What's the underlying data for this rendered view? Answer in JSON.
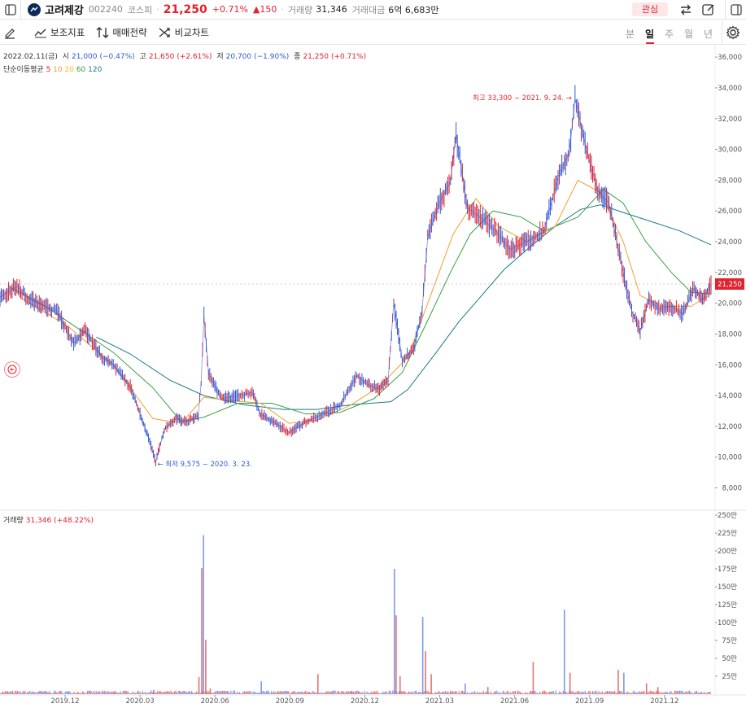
{
  "header": {
    "stock_name": "고려제강",
    "code": "002240",
    "market": "코스피",
    "price": "21,250",
    "change_pct": "+0.71%",
    "change_abs": "▲150",
    "volume_label": "거래량",
    "volume": "31,346",
    "amount_label": "거래대금",
    "amount": "6억 6,683만",
    "favorite_label": "관심"
  },
  "toolbar": {
    "indicator_label": "보조지표",
    "strategy_label": "매매전략",
    "compare_label": "비교차트",
    "periods": [
      "분",
      "일",
      "주",
      "월",
      "년"
    ],
    "active_period": "일"
  },
  "ohlc": {
    "date": "2022.02.11(금)",
    "open_label": "시",
    "open": "21,000",
    "open_pct": "(−0.47%)",
    "high_label": "고",
    "high": "21,650",
    "high_pct": "(+2.61%)",
    "low_label": "저",
    "low": "20,700",
    "low_pct": "(−1.90%)",
    "close_label": "종",
    "close": "21,250",
    "close_pct": "(+0.71%)"
  },
  "ma_legend": {
    "label": "단순이동평균",
    "p5": "5",
    "p10": "10",
    "p20": "20",
    "p60": "60",
    "p120": "120"
  },
  "volume_legend": {
    "label": "거래량",
    "value": "31,346",
    "pct": "(+48.22%)"
  },
  "colors": {
    "up": "#e0232e",
    "down": "#2e5bd8",
    "ma5": "#e0232e",
    "ma10": "#f0a030",
    "ma20": "#f0c020",
    "ma60": "#3aa040",
    "ma120": "#1a7a8a"
  },
  "chart_data": {
    "type": "line",
    "price_axis": {
      "ticks": [
        8000,
        10000,
        12000,
        14000,
        16000,
        18000,
        20000,
        22000,
        24000,
        26000,
        28000,
        30000,
        32000,
        34000,
        36000
      ],
      "tick_labels": [
        "8,000",
        "10,000",
        "12,000",
        "14,000",
        "16,000",
        "18,000",
        "20,000",
        "22,000",
        "24,000",
        "26,000",
        "28,000",
        "30,000",
        "32,000",
        "34,000",
        "36,000"
      ],
      "ylim": [
        6600,
        36800
      ]
    },
    "volume_axis": {
      "ticks": [
        25,
        50,
        75,
        100,
        125,
        150,
        175,
        200,
        225,
        250
      ],
      "tick_labels": [
        "25만",
        "50만",
        "75만",
        "100만",
        "125만",
        "150만",
        "175만",
        "200만",
        "225만",
        "250만"
      ],
      "ylim": [
        0,
        250
      ]
    },
    "x_labels": [
      "2019.12",
      "2020.03",
      "2020.06",
      "2020.09",
      "2020.12",
      "2021.03",
      "2021.06",
      "2021.09",
      "2021.12"
    ],
    "current_price_label": "21,250",
    "current_price": 21250,
    "annotations": {
      "high": "최고 33,300 − 2021. 9. 24.",
      "low": "← 최저 9,575 − 2020. 3. 23."
    },
    "price_series": [
      [
        0,
        20400
      ],
      [
        0.3,
        21100
      ],
      [
        0.5,
        20300
      ],
      [
        0.8,
        19800
      ],
      [
        1.0,
        19500
      ],
      [
        1.3,
        17400
      ],
      [
        1.5,
        18200
      ],
      [
        1.8,
        16500
      ],
      [
        2.0,
        16000
      ],
      [
        2.3,
        14600
      ],
      [
        2.6,
        11500
      ],
      [
        2.75,
        9700
      ],
      [
        2.9,
        11800
      ],
      [
        3.1,
        12500
      ],
      [
        3.3,
        12300
      ],
      [
        3.5,
        12700
      ],
      [
        3.55,
        14800
      ],
      [
        3.6,
        19200
      ],
      [
        3.68,
        15500
      ],
      [
        3.9,
        13800
      ],
      [
        4.2,
        14000
      ],
      [
        4.45,
        14200
      ],
      [
        4.6,
        12800
      ],
      [
        4.9,
        12100
      ],
      [
        5.1,
        11600
      ],
      [
        5.4,
        12300
      ],
      [
        5.7,
        12800
      ],
      [
        6.0,
        13400
      ],
      [
        6.3,
        15300
      ],
      [
        6.5,
        14700
      ],
      [
        6.7,
        14400
      ],
      [
        6.85,
        15000
      ],
      [
        6.95,
        20000
      ],
      [
        7.1,
        16300
      ],
      [
        7.3,
        17000
      ],
      [
        7.45,
        19500
      ],
      [
        7.55,
        24300
      ],
      [
        7.75,
        26500
      ],
      [
        7.95,
        27900
      ],
      [
        8.05,
        31000
      ],
      [
        8.25,
        26200
      ],
      [
        8.5,
        25500
      ],
      [
        8.75,
        24700
      ],
      [
        9.0,
        23500
      ],
      [
        9.3,
        24000
      ],
      [
        9.6,
        24700
      ],
      [
        9.85,
        28200
      ],
      [
        10.05,
        29800
      ],
      [
        10.15,
        33300
      ],
      [
        10.35,
        30000
      ],
      [
        10.55,
        27300
      ],
      [
        10.75,
        26500
      ],
      [
        11.0,
        22000
      ],
      [
        11.15,
        19500
      ],
      [
        11.3,
        18200
      ],
      [
        11.45,
        20200
      ],
      [
        11.65,
        19600
      ],
      [
        11.85,
        19800
      ],
      [
        12.05,
        19300
      ],
      [
        12.25,
        21000
      ],
      [
        12.4,
        20200
      ],
      [
        12.55,
        21250
      ]
    ],
    "volume_series": [
      [
        0.8,
        2
      ],
      [
        1.2,
        3
      ],
      [
        2.0,
        2
      ],
      [
        2.7,
        6
      ],
      [
        3.4,
        1
      ],
      [
        3.5,
        24
      ],
      [
        3.55,
        176
      ],
      [
        3.58,
        222
      ],
      [
        3.62,
        76
      ],
      [
        3.7,
        8
      ],
      [
        4.6,
        18
      ],
      [
        5.6,
        28
      ],
      [
        6.2,
        4
      ],
      [
        6.95,
        175
      ],
      [
        6.98,
        110
      ],
      [
        7.05,
        25
      ],
      [
        7.45,
        108
      ],
      [
        7.5,
        60
      ],
      [
        7.6,
        28
      ],
      [
        8.2,
        15
      ],
      [
        8.6,
        10
      ],
      [
        9.4,
        45
      ],
      [
        9.95,
        118
      ],
      [
        10.05,
        30
      ],
      [
        10.9,
        34
      ],
      [
        11.0,
        30
      ],
      [
        11.4,
        15
      ],
      [
        11.6,
        10
      ]
    ],
    "ma_series": {
      "ma20": [
        [
          0.4,
          20300
        ],
        [
          1.2,
          18500
        ],
        [
          2.0,
          16000
        ],
        [
          2.7,
          12500
        ],
        [
          3.2,
          12200
        ],
        [
          3.6,
          13900
        ],
        [
          4.0,
          13700
        ],
        [
          4.6,
          13500
        ],
        [
          5.1,
          12200
        ],
        [
          5.6,
          12400
        ],
        [
          6.2,
          13400
        ],
        [
          6.7,
          14600
        ],
        [
          7.2,
          16500
        ],
        [
          7.55,
          20000
        ],
        [
          8.0,
          24500
        ],
        [
          8.4,
          26800
        ],
        [
          8.8,
          25000
        ],
        [
          9.3,
          24000
        ],
        [
          9.8,
          25000
        ],
        [
          10.2,
          28000
        ],
        [
          10.6,
          27200
        ],
        [
          11.0,
          24000
        ],
        [
          11.3,
          20500
        ],
        [
          11.7,
          19800
        ],
        [
          12.2,
          19800
        ],
        [
          12.55,
          20600
        ]
      ],
      "ma60": [
        [
          0.2,
          21000
        ],
        [
          0.8,
          19800
        ],
        [
          1.2,
          18800
        ],
        [
          2.0,
          16800
        ],
        [
          2.7,
          14500
        ],
        [
          3.2,
          12300
        ],
        [
          3.6,
          12600
        ],
        [
          4.2,
          13500
        ],
        [
          4.8,
          13500
        ],
        [
          5.4,
          12800
        ],
        [
          6.0,
          12900
        ],
        [
          6.6,
          13800
        ],
        [
          7.1,
          15500
        ],
        [
          7.5,
          18500
        ],
        [
          7.95,
          22000
        ],
        [
          8.3,
          24500
        ],
        [
          8.7,
          26000
        ],
        [
          9.2,
          25600
        ],
        [
          9.6,
          24700
        ],
        [
          10.2,
          25600
        ],
        [
          10.65,
          27400
        ],
        [
          11.0,
          26500
        ],
        [
          11.4,
          24000
        ],
        [
          11.85,
          22000
        ],
        [
          12.2,
          20700
        ],
        [
          12.55,
          20600
        ]
      ],
      "ma120": [
        [
          1.7,
          17800
        ],
        [
          2.3,
          16700
        ],
        [
          3.0,
          15000
        ],
        [
          3.6,
          14000
        ],
        [
          4.3,
          13400
        ],
        [
          5.0,
          13100
        ],
        [
          5.6,
          13100
        ],
        [
          6.2,
          13400
        ],
        [
          6.9,
          13600
        ],
        [
          7.2,
          14400
        ],
        [
          7.7,
          16800
        ],
        [
          8.1,
          18800
        ],
        [
          8.5,
          20500
        ],
        [
          8.9,
          22200
        ],
        [
          9.4,
          23800
        ],
        [
          9.8,
          25000
        ],
        [
          10.25,
          26100
        ],
        [
          10.6,
          26400
        ],
        [
          11.0,
          25900
        ],
        [
          11.5,
          25300
        ],
        [
          12.0,
          24700
        ],
        [
          12.55,
          23800
        ]
      ]
    }
  }
}
